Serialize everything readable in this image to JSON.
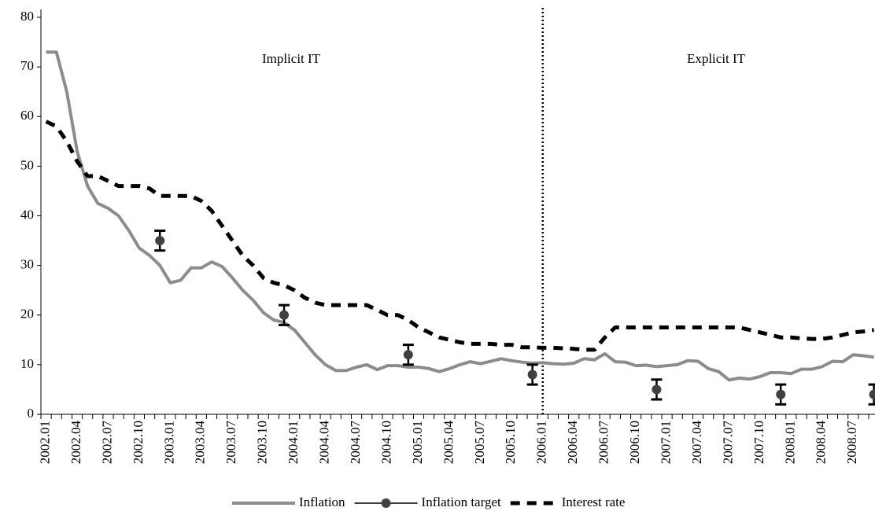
{
  "chart_data": {
    "type": "line",
    "categories": [
      "2002.01",
      null,
      null,
      "2002.04",
      null,
      null,
      "2002.07",
      null,
      null,
      "2002.10",
      null,
      null,
      "2003.01",
      null,
      null,
      "2003.04",
      null,
      null,
      "2003.07",
      null,
      null,
      "2003.10",
      null,
      null,
      "2004.01",
      null,
      null,
      "2004.04",
      null,
      null,
      "2004.07",
      null,
      null,
      "2004.10",
      null,
      null,
      "2005.01",
      null,
      null,
      "2005.04",
      null,
      null,
      "2005.07",
      null,
      null,
      "2005.10",
      null,
      null,
      "2006.01",
      null,
      null,
      "2006.04",
      null,
      null,
      "2006.07",
      null,
      null,
      "2006.10",
      null,
      null,
      "2007.01",
      null,
      null,
      "2007.04",
      null,
      null,
      "2007.07",
      null,
      null,
      "2007.10",
      null,
      null,
      "2008.01",
      null,
      null,
      "2008.04",
      null,
      null,
      "2008.07",
      null,
      null
    ],
    "series": [
      {
        "name": "Inflation",
        "color": "#8c8c8c",
        "style": "solid",
        "values": [
          73,
          73,
          65,
          53,
          46,
          42.5,
          41.5,
          40,
          37,
          33.5,
          32,
          30,
          26.5,
          27,
          29.5,
          29.5,
          30.7,
          29.8,
          27.5,
          25,
          23,
          20.5,
          19,
          18.5,
          17,
          14.5,
          12,
          10,
          8.8,
          8.8,
          9.5,
          10,
          9,
          9.8,
          9.8,
          9.5,
          9.5,
          9.2,
          8.6,
          9.2,
          10,
          10.6,
          10.2,
          10.7,
          11.2,
          10.8,
          10.5,
          10.3,
          10.4,
          10.2,
          10.1,
          10.3,
          11.2,
          11,
          12.2,
          10.6,
          10.5,
          9.8,
          9.9,
          9.6,
          9.8,
          10,
          10.8,
          10.7,
          9.2,
          8.6,
          6.9,
          7.3,
          7.1,
          7.6,
          8.4,
          8.4,
          8.2,
          9.1,
          9.1,
          9.6,
          10.7,
          10.6,
          12,
          11.8,
          11.5
        ]
      },
      {
        "name": "Inflation target",
        "color": "#000000",
        "marker_color": "#404040",
        "style": "points",
        "values": [
          null,
          null,
          null,
          null,
          null,
          null,
          null,
          null,
          null,
          null,
          null,
          35,
          null,
          null,
          null,
          null,
          null,
          null,
          null,
          null,
          null,
          null,
          null,
          20,
          null,
          null,
          null,
          null,
          null,
          null,
          null,
          null,
          null,
          null,
          null,
          12,
          null,
          null,
          null,
          null,
          null,
          null,
          null,
          null,
          null,
          null,
          null,
          8,
          null,
          null,
          null,
          null,
          null,
          null,
          null,
          null,
          null,
          null,
          null,
          5,
          null,
          null,
          null,
          null,
          null,
          null,
          null,
          null,
          null,
          null,
          null,
          4,
          null,
          null,
          null,
          null,
          null,
          null,
          null,
          null,
          4
        ],
        "errors": [
          null,
          null,
          null,
          null,
          null,
          null,
          null,
          null,
          null,
          null,
          null,
          2,
          null,
          null,
          null,
          null,
          null,
          null,
          null,
          null,
          null,
          null,
          null,
          2,
          null,
          null,
          null,
          null,
          null,
          null,
          null,
          null,
          null,
          null,
          null,
          2,
          null,
          null,
          null,
          null,
          null,
          null,
          null,
          null,
          null,
          null,
          null,
          2,
          null,
          null,
          null,
          null,
          null,
          null,
          null,
          null,
          null,
          null,
          null,
          2,
          null,
          null,
          null,
          null,
          null,
          null,
          null,
          null,
          null,
          null,
          null,
          2,
          null,
          null,
          null,
          null,
          null,
          null,
          null,
          null,
          2
        ]
      },
      {
        "name": "Interest rate",
        "color": "#000000",
        "style": "dashed",
        "values": [
          59,
          58,
          55,
          51,
          48,
          48,
          47,
          46,
          46,
          46,
          45.5,
          44,
          44,
          44,
          44,
          43,
          41,
          38,
          35,
          32,
          30,
          27.5,
          26.5,
          26,
          25,
          23.5,
          22.5,
          22,
          22,
          22,
          22,
          22,
          21,
          20,
          20,
          19,
          17.5,
          16.5,
          15.5,
          15,
          14.5,
          14.2,
          14.2,
          14.2,
          14,
          14,
          13.5,
          13.5,
          13.4,
          13.4,
          13.3,
          13.2,
          13,
          13,
          15.5,
          17.5,
          17.5,
          17.5,
          17.5,
          17.5,
          17.5,
          17.5,
          17.5,
          17.5,
          17.5,
          17.5,
          17.5,
          17.5,
          17,
          16.5,
          16,
          15.5,
          15.5,
          15.3,
          15.2,
          15.2,
          15.5,
          16,
          16.5,
          16.7,
          17
        ]
      }
    ],
    "ylim": [
      0,
      80
    ],
    "yticks": [
      0,
      10,
      20,
      30,
      40,
      50,
      60,
      70,
      80
    ],
    "vline_at": "2006.01",
    "annotations": [
      "Implicit IT",
      "Explicit IT"
    ],
    "legend": "bottom"
  }
}
